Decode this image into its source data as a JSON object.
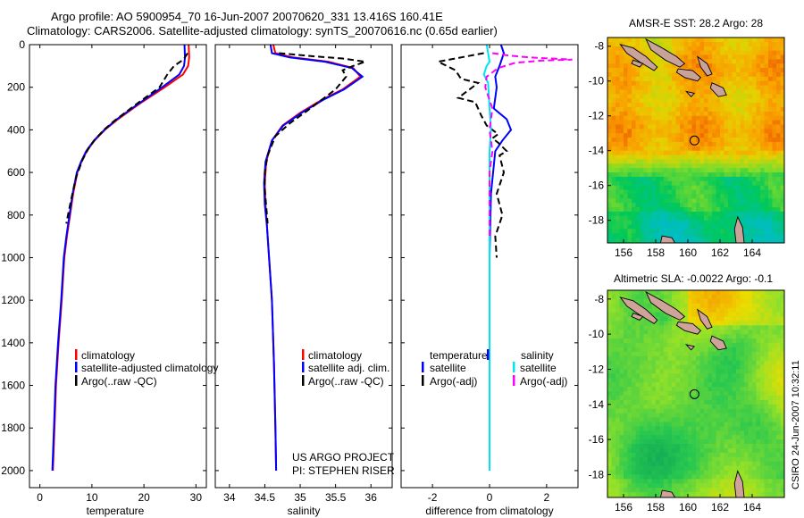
{
  "header": {
    "title_line1": "Argo profile: AO 5900954_70 16-Jun-2007 20070620_331 13.416S 160.41E",
    "title_line2": "Climatology: CARS2006. Satellite-adjusted climatology: synTS_20070616.nc (0.65d earlier)"
  },
  "credit": "CSIRO 24-Jun-2007 10:32:11",
  "project_note": [
    "US ARGO PROJECT",
    "PI: STEPHEN RISER"
  ],
  "colors": {
    "climatology": "#ff0000",
    "satellite": "#0000ff",
    "argo": "#000000",
    "diff_sal_sat": "#00e5ee",
    "diff_sal_argo": "#ff00ff"
  },
  "chart_data": [
    {
      "type": "line",
      "name": "temperature-profile",
      "xlabel": "temperature",
      "ylabel": "",
      "xlim": [
        -2,
        32
      ],
      "ylim": [
        2080,
        0
      ],
      "y_inverted": true,
      "xticks": [
        0,
        10,
        20,
        30
      ],
      "yticks": [
        0,
        200,
        400,
        600,
        800,
        1000,
        1200,
        1400,
        1600,
        1800,
        2000
      ],
      "series": [
        {
          "name": "climatology",
          "color": "#ff0000",
          "dash": "",
          "points": [
            [
              28.6,
              0
            ],
            [
              28.7,
              60
            ],
            [
              28.5,
              100
            ],
            [
              27.5,
              140
            ],
            [
              24,
              200
            ],
            [
              19,
              280
            ],
            [
              15,
              350
            ],
            [
              12.5,
              400
            ],
            [
              10.5,
              450
            ],
            [
              9,
              500
            ],
            [
              8,
              550
            ],
            [
              7.2,
              600
            ],
            [
              6.4,
              700
            ],
            [
              5.8,
              800
            ],
            [
              5.2,
              900
            ],
            [
              4.7,
              1000
            ],
            [
              4.2,
              1200
            ],
            [
              3.6,
              1400
            ],
            [
              3.1,
              1600
            ],
            [
              2.8,
              1800
            ],
            [
              2.5,
              2000
            ]
          ]
        },
        {
          "name": "satellite-adjusted climatology",
          "color": "#0000ff",
          "dash": "",
          "points": [
            [
              27.8,
              0
            ],
            [
              27.9,
              60
            ],
            [
              27.7,
              100
            ],
            [
              26.8,
              140
            ],
            [
              23.5,
              200
            ],
            [
              18.8,
              280
            ],
            [
              14.8,
              350
            ],
            [
              12.4,
              400
            ],
            [
              10.4,
              450
            ],
            [
              8.9,
              500
            ],
            [
              7.9,
              550
            ],
            [
              7.1,
              600
            ],
            [
              6.3,
              700
            ],
            [
              5.7,
              800
            ],
            [
              5.1,
              900
            ],
            [
              4.6,
              1000
            ],
            [
              4.1,
              1200
            ],
            [
              3.5,
              1400
            ],
            [
              3.0,
              1600
            ],
            [
              2.7,
              1800
            ],
            [
              2.4,
              2000
            ]
          ]
        },
        {
          "name": "Argo(..raw -QC)",
          "color": "#000000",
          "dash": "7,4",
          "points": [
            [
              28.4,
              40
            ],
            [
              27.6,
              70
            ],
            [
              25.8,
              100
            ],
            [
              24.5,
              140
            ],
            [
              23,
              200
            ],
            [
              18.5,
              280
            ],
            [
              14.2,
              360
            ],
            [
              12.3,
              400
            ],
            [
              10.8,
              440
            ],
            [
              9.5,
              480
            ],
            [
              8.2,
              540
            ],
            [
              7.0,
              620
            ],
            [
              6.6,
              660
            ],
            [
              5.9,
              740
            ],
            [
              5.4,
              800
            ],
            [
              5.1,
              840
            ]
          ]
        }
      ],
      "legend": {
        "placement": "lower-right",
        "entries": [
          "climatology",
          "satellite-adjusted climatology",
          "Argo(..raw -QC)"
        ]
      }
    },
    {
      "type": "line",
      "name": "salinity-profile",
      "xlabel": "salinity",
      "ylabel": "",
      "xlim": [
        33.8,
        36.3
      ],
      "ylim": [
        2080,
        0
      ],
      "y_inverted": true,
      "xticks": [
        34,
        34.5,
        35,
        35.5,
        36
      ],
      "yticks": [
        0,
        200,
        400,
        600,
        800,
        1000,
        1200,
        1400,
        1600,
        1800,
        2000
      ],
      "series": [
        {
          "name": "climatology",
          "color": "#ff0000",
          "dash": "",
          "points": [
            [
              34.62,
              0
            ],
            [
              34.65,
              40
            ],
            [
              34.9,
              60
            ],
            [
              35.4,
              80
            ],
            [
              35.75,
              110
            ],
            [
              35.85,
              150
            ],
            [
              35.6,
              210
            ],
            [
              35.3,
              260
            ],
            [
              35.0,
              320
            ],
            [
              34.75,
              380
            ],
            [
              34.6,
              450
            ],
            [
              34.52,
              550
            ],
            [
              34.5,
              650
            ],
            [
              34.51,
              750
            ],
            [
              34.53,
              850
            ],
            [
              34.56,
              1000
            ],
            [
              34.6,
              1200
            ],
            [
              34.63,
              1500
            ],
            [
              34.65,
              1800
            ],
            [
              34.66,
              2000
            ]
          ]
        },
        {
          "name": "satellite adj. clim.",
          "color": "#0000ff",
          "dash": "",
          "points": [
            [
              34.58,
              0
            ],
            [
              34.6,
              40
            ],
            [
              34.85,
              60
            ],
            [
              35.35,
              80
            ],
            [
              35.73,
              110
            ],
            [
              35.88,
              150
            ],
            [
              35.62,
              210
            ],
            [
              35.32,
              260
            ],
            [
              35.02,
              320
            ],
            [
              34.76,
              380
            ],
            [
              34.6,
              450
            ],
            [
              34.51,
              550
            ],
            [
              34.49,
              650
            ],
            [
              34.5,
              750
            ],
            [
              34.53,
              850
            ],
            [
              34.56,
              1000
            ],
            [
              34.6,
              1200
            ],
            [
              34.63,
              1500
            ],
            [
              34.65,
              1800
            ],
            [
              34.66,
              2000
            ]
          ]
        },
        {
          "name": "Argo(..raw -QC)",
          "color": "#000000",
          "dash": "7,4",
          "points": [
            [
              34.7,
              40
            ],
            [
              35.2,
              55
            ],
            [
              35.6,
              65
            ],
            [
              35.92,
              80
            ],
            [
              35.75,
              100
            ],
            [
              35.6,
              120
            ],
            [
              35.65,
              150
            ],
            [
              35.5,
              210
            ],
            [
              35.3,
              260
            ],
            [
              35.1,
              310
            ],
            [
              34.85,
              370
            ],
            [
              34.65,
              430
            ],
            [
              34.54,
              520
            ],
            [
              34.5,
              600
            ],
            [
              34.5,
              680
            ],
            [
              34.52,
              760
            ],
            [
              34.54,
              840
            ]
          ]
        }
      ],
      "legend": {
        "placement": "lower-right",
        "entries": [
          "climatology",
          "satellite adj. clim.",
          "Argo(..raw -QC)"
        ]
      }
    },
    {
      "type": "line",
      "name": "difference-profile",
      "xlabel": "difference from climatology",
      "ylabel": "",
      "xlim": [
        -3.1,
        3.1
      ],
      "ylim": [
        2080,
        0
      ],
      "y_inverted": true,
      "xticks": [
        -2,
        0,
        2
      ],
      "yticks": [
        0,
        200,
        400,
        600,
        800,
        1000,
        1200,
        1400,
        1600,
        1800,
        2000
      ],
      "series": [
        {
          "name": "temperature satellite",
          "color": "#0000ff",
          "dash": "",
          "points": [
            [
              0.4,
              0
            ],
            [
              0.5,
              40
            ],
            [
              0.35,
              100
            ],
            [
              0.2,
              150
            ],
            [
              0.25,
              200
            ],
            [
              0.15,
              300
            ],
            [
              0.6,
              350
            ],
            [
              0.75,
              400
            ],
            [
              0.45,
              450
            ],
            [
              0.2,
              500
            ],
            [
              0.05,
              700
            ],
            [
              0,
              1000
            ],
            [
              0,
              1500
            ],
            [
              0,
              2000
            ]
          ]
        },
        {
          "name": "temperature Argo(-adj)",
          "color": "#000000",
          "dash": "7,4",
          "points": [
            [
              -0.2,
              40
            ],
            [
              -1.8,
              80
            ],
            [
              -1.2,
              120
            ],
            [
              -1.0,
              160
            ],
            [
              -0.4,
              180
            ],
            [
              -1.1,
              250
            ],
            [
              -0.5,
              270
            ],
            [
              -0.3,
              330
            ],
            [
              -0.1,
              380
            ],
            [
              0.3,
              420
            ],
            [
              0.1,
              440
            ],
            [
              0.3,
              460
            ],
            [
              0.6,
              500
            ],
            [
              0.35,
              520
            ],
            [
              0.5,
              600
            ],
            [
              0.25,
              700
            ],
            [
              0.45,
              800
            ],
            [
              0.2,
              900
            ],
            [
              0.25,
              1000
            ]
          ]
        },
        {
          "name": "salinity satellite",
          "color": "#00e5ee",
          "dash": "",
          "points": [
            [
              -0.1,
              0
            ],
            [
              -0.05,
              40
            ],
            [
              0.0,
              80
            ],
            [
              -0.1,
              100
            ],
            [
              -0.2,
              140
            ],
            [
              -0.05,
              180
            ],
            [
              0.0,
              300
            ],
            [
              0.05,
              400
            ],
            [
              0.0,
              500
            ],
            [
              0.0,
              700
            ],
            [
              0.0,
              1000
            ],
            [
              0.0,
              1500
            ],
            [
              0.0,
              2000
            ]
          ]
        },
        {
          "name": "salinity Argo(-adj)",
          "color": "#ff00ff",
          "dash": "7,4",
          "points": [
            [
              0.1,
              40
            ],
            [
              0.6,
              50
            ],
            [
              1.4,
              60
            ],
            [
              2.9,
              70
            ],
            [
              1.8,
              75
            ],
            [
              0.9,
              85
            ],
            [
              0.3,
              110
            ],
            [
              -0.1,
              150
            ],
            [
              -0.15,
              200
            ],
            [
              0.1,
              300
            ],
            [
              0.0,
              400
            ],
            [
              0.1,
              500
            ],
            [
              0.0,
              600
            ],
            [
              0.0,
              700
            ],
            [
              0.0,
              800
            ],
            [
              0.0,
              900
            ]
          ]
        }
      ],
      "legend": {
        "placement": "lower-center",
        "groups": [
          {
            "heading": "temperature",
            "entries": [
              "satellite",
              "Argo(-adj)"
            ]
          },
          {
            "heading": "salinity",
            "entries": [
              "satellite",
              "Argo(-adj)"
            ]
          }
        ]
      }
    },
    {
      "type": "heatmap",
      "name": "sst-map",
      "title": "AMSR-E SST: 28.2  Argo: 28",
      "xlim": [
        155,
        166
      ],
      "ylim": [
        -19.3,
        -7.5
      ],
      "xticks": [
        156,
        158,
        160,
        162,
        164
      ],
      "yticks": [
        -8,
        -10,
        -12,
        -14,
        -16,
        -18
      ],
      "argo_position": [
        160.41,
        -13.416
      ]
    },
    {
      "type": "heatmap",
      "name": "sla-map",
      "title": "Altimetric SLA: -0.0022  Argo: -0.1",
      "xlim": [
        155,
        166
      ],
      "ylim": [
        -19.3,
        -7.5
      ],
      "xticks": [
        156,
        158,
        160,
        162,
        164
      ],
      "yticks": [
        -8,
        -10,
        -12,
        -14,
        -16,
        -18
      ],
      "argo_position": [
        160.41,
        -13.416
      ]
    }
  ]
}
